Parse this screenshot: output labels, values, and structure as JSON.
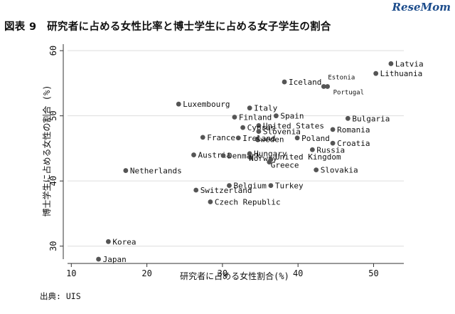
{
  "header": {
    "title": "図表 9　研究者に占める女性比率と博士学生に占める女子学生の割合",
    "logo": "ReseMom"
  },
  "footer": {
    "source": "出典: UIS"
  },
  "chart_data": {
    "type": "scatter",
    "title": "図表 9　研究者に占める女性比率と博士学生に占める女子学生の割合",
    "xlabel": "研究者に占める女性割合(%)",
    "ylabel": "博士学生に占める女性の割合 (%)",
    "xlim": [
      9.5,
      54
    ],
    "ylim": [
      28,
      61
    ],
    "xticks": [
      10,
      20,
      30,
      40,
      50
    ],
    "yticks": [
      30,
      40,
      50,
      60
    ],
    "grid": true,
    "points": [
      {
        "label": "Latvia",
        "x": 52.3,
        "y": 58.0
      },
      {
        "label": "Lithuania",
        "x": 50.3,
        "y": 56.5
      },
      {
        "label": "Iceland",
        "x": 38.2,
        "y": 55.2
      },
      {
        "label": "Estonia",
        "x": 43.4,
        "y": 54.5
      },
      {
        "label": "Portugal",
        "x": 43.9,
        "y": 54.5
      },
      {
        "label": "Luxembourg",
        "x": 24.2,
        "y": 51.8
      },
      {
        "label": "Italy",
        "x": 33.6,
        "y": 51.2
      },
      {
        "label": "Finland",
        "x": 31.6,
        "y": 49.8
      },
      {
        "label": "Spain",
        "x": 37.1,
        "y": 50.0
      },
      {
        "label": "Bulgaria",
        "x": 46.6,
        "y": 49.6
      },
      {
        "label": "United States",
        "x": 34.8,
        "y": 48.5
      },
      {
        "label": "Cyprus",
        "x": 32.7,
        "y": 48.2
      },
      {
        "label": "Romania",
        "x": 44.6,
        "y": 47.9
      },
      {
        "label": "Slovenia",
        "x": 34.8,
        "y": 47.6
      },
      {
        "label": "France",
        "x": 27.4,
        "y": 46.7
      },
      {
        "label": "Ireland",
        "x": 32.1,
        "y": 46.6
      },
      {
        "label": "Sweden",
        "x": 34.6,
        "y": 46.4
      },
      {
        "label": "Poland",
        "x": 39.9,
        "y": 46.6
      },
      {
        "label": "Croatia",
        "x": 44.6,
        "y": 45.8
      },
      {
        "label": "Russia",
        "x": 41.9,
        "y": 44.8
      },
      {
        "label": "Austria",
        "x": 26.2,
        "y": 44.0
      },
      {
        "label": "Denmark",
        "x": 30.1,
        "y": 43.9
      },
      {
        "label": "Hungary",
        "x": 33.6,
        "y": 44.2
      },
      {
        "label": "Norway",
        "x": 33.7,
        "y": 43.6
      },
      {
        "label": "United Kingdom",
        "x": 36.4,
        "y": 43.3
      },
      {
        "label": "Greece",
        "x": 36.2,
        "y": 42.9
      },
      {
        "label": "Slovakia",
        "x": 42.4,
        "y": 41.7
      },
      {
        "label": "Netherlands",
        "x": 17.2,
        "y": 41.6
      },
      {
        "label": "Belgium",
        "x": 30.9,
        "y": 39.3
      },
      {
        "label": "Turkey",
        "x": 36.4,
        "y": 39.3
      },
      {
        "label": "Switzerland",
        "x": 26.5,
        "y": 38.6
      },
      {
        "label": "Czech Republic",
        "x": 28.4,
        "y": 36.8
      },
      {
        "label": "Korea",
        "x": 14.9,
        "y": 30.7
      },
      {
        "label": "Japan",
        "x": 13.6,
        "y": 28.0
      }
    ]
  }
}
